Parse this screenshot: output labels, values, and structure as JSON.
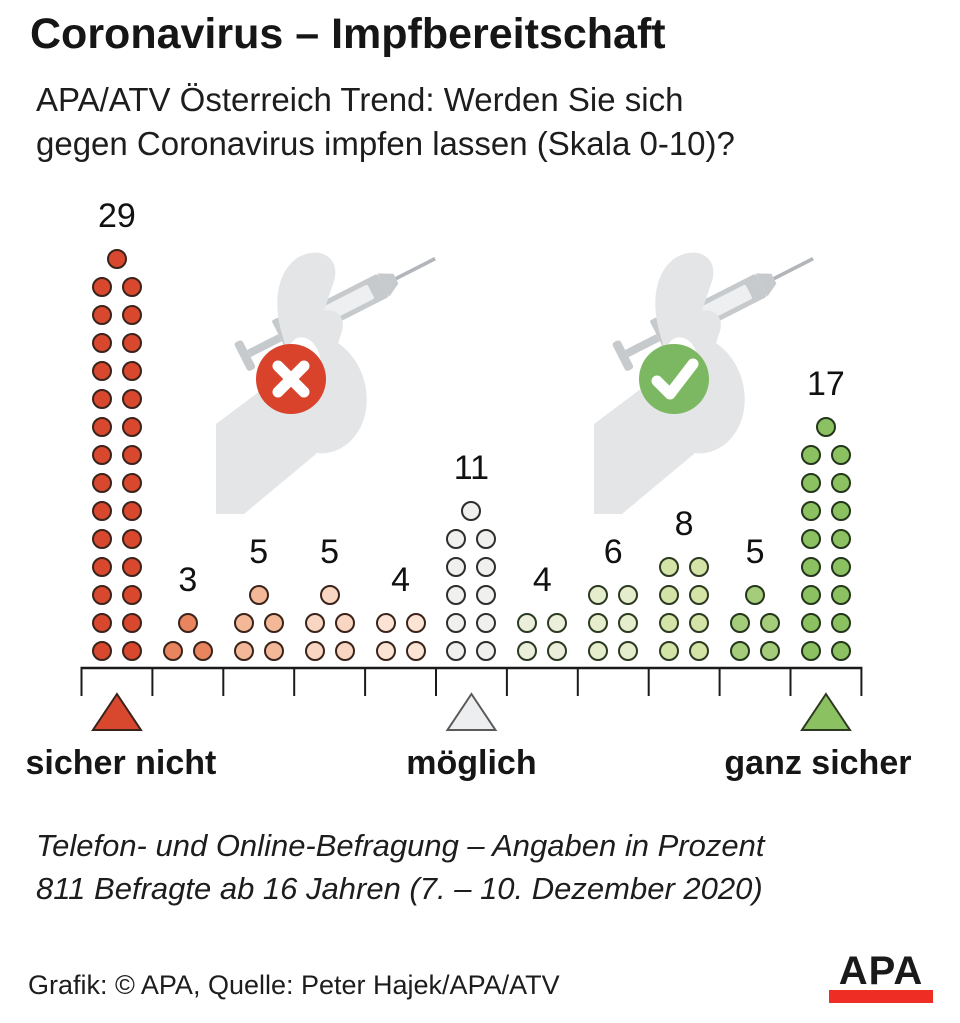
{
  "title": "Coronavirus – Impfbereitschaft",
  "subtitle": {
    "line1": "APA/ATV Österreich Trend: Werden Sie sich",
    "line2": "gegen Coronavirus impfen lassen (Skala 0-10)?"
  },
  "chart_data": {
    "type": "pictogram_dot_columns",
    "title": "Coronavirus – Impfbereitschaft",
    "question": "Werden Sie sich gegen Coronavirus impfen lassen (Skala 0-10)?",
    "unit": "Prozent",
    "categories": [
      "0",
      "1",
      "2",
      "3",
      "4",
      "5",
      "6",
      "7",
      "8",
      "9",
      "10"
    ],
    "values": [
      29,
      3,
      5,
      5,
      4,
      11,
      4,
      6,
      8,
      5,
      17
    ],
    "dot_colors": [
      "#d8482e",
      "#e8855f",
      "#f2b897",
      "#f8d6c1",
      "#fbe4d4",
      "#f0f0ef",
      "#eaeedb",
      "#e5edcc",
      "#d4e3a6",
      "#a5cc7a",
      "#8cc162"
    ],
    "dot_strokes": [
      "#3a231b",
      "#3a231b",
      "#3a231b",
      "#3a231b",
      "#3a231b",
      "#2e2e2e",
      "#2c3a22",
      "#2c3a22",
      "#2c3a22",
      "#24361c",
      "#24361c"
    ],
    "markers": [
      {
        "position": 0,
        "label": "sicher nicht",
        "color": "#d8482e",
        "stroke": "#3a231b"
      },
      {
        "position": 5,
        "label": "möglich",
        "color": "#eceef0",
        "stroke": "#5a5a5a"
      },
      {
        "position": 10,
        "label": "ganz sicher",
        "color": "#8cc162",
        "stroke": "#2c3a22"
      }
    ],
    "legend_position": "none",
    "grid": false
  },
  "icons": {
    "reject": {
      "name": "x-cross-icon",
      "color": "#d9432c"
    },
    "accept": {
      "name": "checkmark-icon",
      "color": "#7cb861"
    }
  },
  "footnote": {
    "line1": "Telefon- und Online-Befragung – Angaben in Prozent",
    "line2": "811 Befragte ab 16 Jahren (7. – 10. Dezember 2020)"
  },
  "credit": "Grafik: © APA, Quelle: Peter Hajek/APA/ATV",
  "logo": {
    "text": "APA",
    "bar_color": "#ee2e24"
  }
}
